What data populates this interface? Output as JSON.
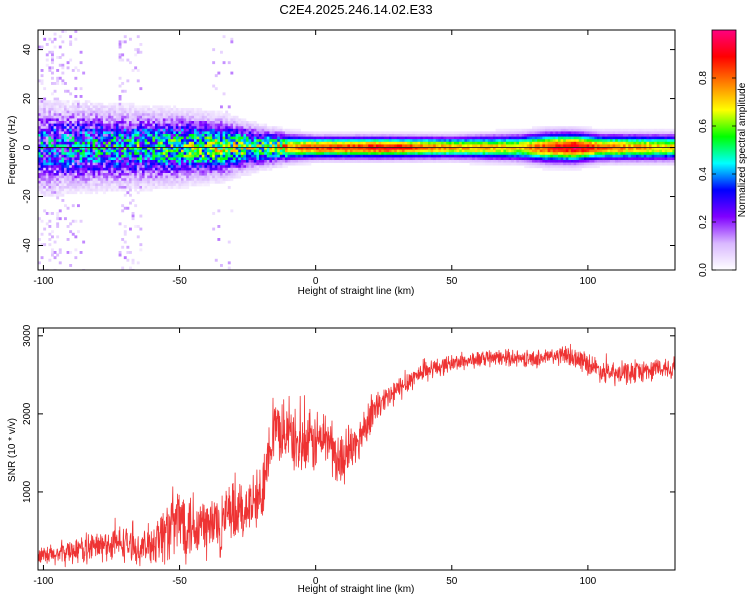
{
  "title": "C2E4.2025.246.14.02.E33",
  "chart_data": [
    {
      "type": "heatmap",
      "title": "C2E4.2025.246.14.02.E33",
      "xlabel": "Height of straight line (km)",
      "ylabel": "Frequency (Hz)",
      "xlim": [
        -102,
        132
      ],
      "ylim": [
        -50,
        48
      ],
      "x_ticks": [
        -100,
        -50,
        0,
        50,
        100
      ],
      "y_ticks": [
        -40,
        -20,
        0,
        20,
        40
      ],
      "x_tick_labels": [
        "-100",
        "-50",
        "0",
        "50",
        "100"
      ],
      "y_tick_labels": [
        "-40",
        "-20",
        "0",
        "20",
        "40"
      ],
      "colorbar": {
        "label": "Normalized spectral amplitude",
        "range": [
          0,
          1
        ],
        "ticks": [
          0.0,
          0.2,
          0.4,
          0.6,
          0.8
        ],
        "tick_labels": [
          "0.0",
          "0.2",
          "0.4",
          "0.6",
          "0.8"
        ],
        "colormap": [
          "#ffffff",
          "#d9b8ff",
          "#8000ff",
          "#0000ff",
          "#00ffff",
          "#00ff00",
          "#ffff00",
          "#ff8000",
          "#ff0000",
          "#ff0080"
        ]
      },
      "ridge": {
        "center_hz": 0,
        "x": [
          -100,
          -75,
          -50,
          -35,
          -20,
          -10,
          0,
          25,
          50,
          75,
          85,
          95,
          105,
          132
        ],
        "peak_amplitude": [
          0.35,
          0.4,
          0.5,
          0.6,
          0.55,
          0.75,
          0.85,
          0.9,
          0.75,
          0.7,
          0.85,
          0.95,
          0.8,
          0.7
        ],
        "half_width_hz": [
          9,
          8,
          7,
          6,
          4,
          3,
          2.5,
          2.5,
          2.5,
          3,
          3.5,
          3.5,
          3,
          3
        ]
      }
    },
    {
      "type": "line",
      "xlabel": "Height of straight line (km)",
      "ylabel": "SNR (10 * v/v)",
      "xlim": [
        -102,
        132
      ],
      "ylim": [
        0,
        3100
      ],
      "x_ticks": [
        -100,
        -50,
        0,
        50,
        100
      ],
      "y_ticks": [
        1000,
        2000,
        3000
      ],
      "x_tick_labels": [
        "-100",
        "-50",
        "0",
        "50",
        "100"
      ],
      "y_tick_labels": [
        "1000",
        "2000",
        "3000"
      ],
      "series": [
        {
          "color": "#ee3333",
          "x": [
            -102,
            -95,
            -90,
            -80,
            -70,
            -65,
            -60,
            -55,
            -50,
            -45,
            -40,
            -35,
            -30,
            -25,
            -20,
            -18,
            -15,
            -10,
            -5,
            0,
            5,
            8,
            10,
            15,
            20,
            25,
            30,
            35,
            40,
            45,
            50,
            60,
            70,
            80,
            90,
            95,
            100,
            105,
            110,
            120,
            132
          ],
          "y": [
            150,
            200,
            250,
            300,
            350,
            250,
            350,
            500,
            650,
            600,
            550,
            600,
            700,
            800,
            900,
            1500,
            1800,
            1750,
            1550,
            1650,
            1700,
            1350,
            1450,
            1600,
            2000,
            2150,
            2300,
            2450,
            2550,
            2600,
            2650,
            2700,
            2720,
            2700,
            2750,
            2720,
            2650,
            2550,
            2500,
            2550,
            2600
          ],
          "noise": [
            150,
            180,
            200,
            250,
            280,
            200,
            350,
            500,
            600,
            600,
            550,
            550,
            500,
            450,
            550,
            500,
            500,
            450,
            500,
            500,
            450,
            450,
            400,
            350,
            300,
            250,
            200,
            180,
            150,
            150,
            130,
            130,
            120,
            130,
            150,
            160,
            170,
            170,
            180,
            170,
            170
          ]
        }
      ]
    }
  ]
}
